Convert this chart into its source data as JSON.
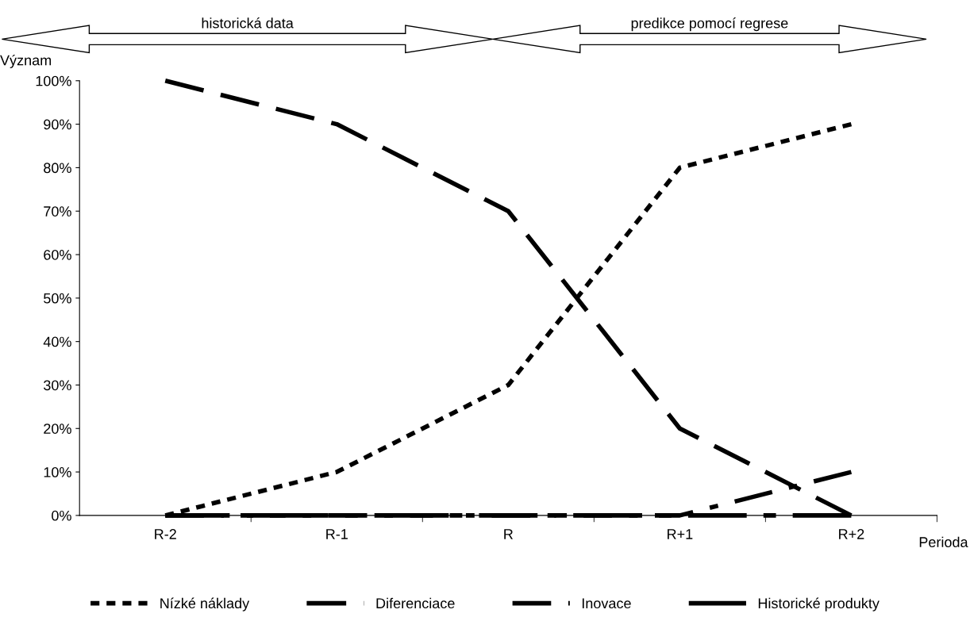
{
  "chart_data": {
    "type": "line",
    "ylabel": "Význam",
    "xlabel": "Perioda",
    "categories": [
      "R-2",
      "R-1",
      "R",
      "R+1",
      "R+2"
    ],
    "series": [
      {
        "name": "Nízké náklady",
        "color": "#000000",
        "line_style": "dotted",
        "values": [
          0,
          10,
          30,
          80,
          90
        ]
      },
      {
        "name": "Diferenciace",
        "color": "#000000",
        "line_style": "dashed",
        "values": [
          100,
          90,
          70,
          20,
          0
        ]
      },
      {
        "name": "Inovace",
        "color": "#000000",
        "line_style": "dashdot",
        "values": [
          0,
          0,
          0,
          0,
          10
        ]
      },
      {
        "name": "Historické produkty",
        "color": "#000000",
        "line_style": "longdashdot",
        "values": [
          0,
          0,
          0,
          0,
          0
        ]
      }
    ],
    "ylim": [
      0,
      100
    ],
    "yticks": [
      {
        "value": 0,
        "label": "0%"
      },
      {
        "value": 10,
        "label": "10%"
      },
      {
        "value": 20,
        "label": "20%"
      },
      {
        "value": 30,
        "label": "30%"
      },
      {
        "value": 40,
        "label": "40%"
      },
      {
        "value": 50,
        "label": "50%"
      },
      {
        "value": 60,
        "label": "60%"
      },
      {
        "value": 70,
        "label": "70%"
      },
      {
        "value": 80,
        "label": "80%"
      },
      {
        "value": 90,
        "label": "90%"
      },
      {
        "value": 100,
        "label": "100%"
      }
    ],
    "annotations": [
      "historická data",
      "predikce pomocí regrese"
    ],
    "legend": "bottom",
    "grid": false,
    "marker": "none"
  }
}
